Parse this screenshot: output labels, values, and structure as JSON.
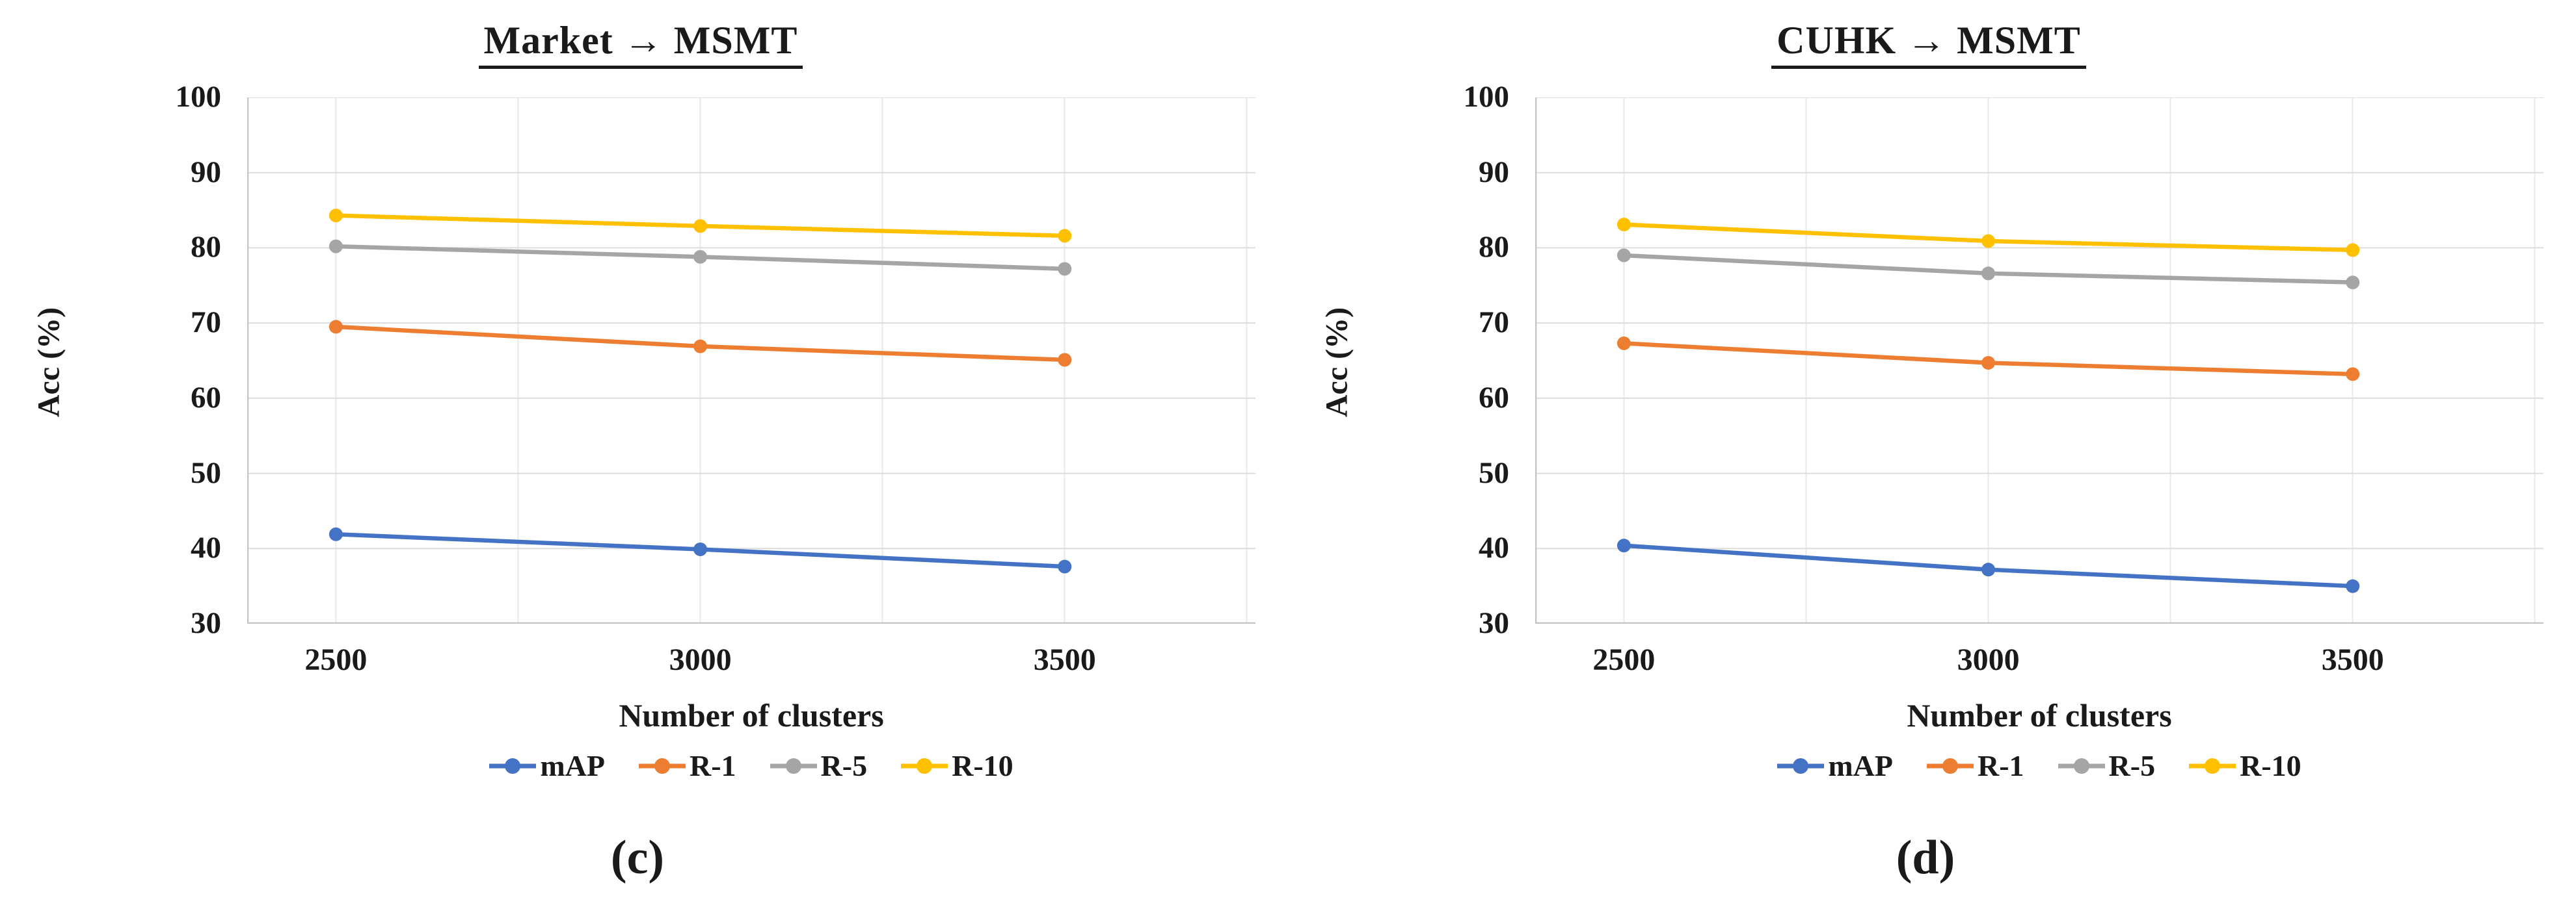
{
  "figure": {
    "background_color": "#ffffff",
    "text_color": "#1a1a1a",
    "gridline_color": "#dcdcdc",
    "vertical_gridline_color": "#e8e8e8",
    "axis_line_color": "#c4c4c4"
  },
  "chart_data": [
    {
      "type": "line",
      "title": "Market → MSMT",
      "caption": "(c)",
      "xlabel": "Number of clusters",
      "ylabel": "Acc (%)",
      "categories": [
        "2500",
        "3000",
        "3500"
      ],
      "yticks": [
        100,
        90,
        80,
        70,
        60,
        50,
        40,
        30
      ],
      "ylim": [
        30,
        100
      ],
      "grid": true,
      "legend_position": "bottom",
      "series": [
        {
          "name": "mAP",
          "color": "#4472C4",
          "values": [
            41.9,
            39.9,
            37.6
          ]
        },
        {
          "name": "R-1",
          "color": "#ED7D31",
          "values": [
            69.5,
            66.9,
            65.1
          ]
        },
        {
          "name": "R-5",
          "color": "#A5A5A5",
          "values": [
            80.2,
            78.8,
            77.2
          ]
        },
        {
          "name": "R-10",
          "color": "#FFC000",
          "values": [
            84.3,
            82.9,
            81.6
          ]
        }
      ]
    },
    {
      "type": "line",
      "title": "CUHK → MSMT",
      "caption": "(d)",
      "xlabel": "Number of clusters",
      "ylabel": "Acc (%)",
      "categories": [
        "2500",
        "3000",
        "3500"
      ],
      "yticks": [
        100,
        90,
        80,
        70,
        60,
        50,
        40,
        30
      ],
      "ylim": [
        30,
        100
      ],
      "grid": true,
      "legend_position": "bottom",
      "series": [
        {
          "name": "mAP",
          "color": "#4472C4",
          "values": [
            40.4,
            37.2,
            35.0
          ]
        },
        {
          "name": "R-1",
          "color": "#ED7D31",
          "values": [
            67.3,
            64.7,
            63.2
          ]
        },
        {
          "name": "R-5",
          "color": "#A5A5A5",
          "values": [
            79.0,
            76.6,
            75.4
          ]
        },
        {
          "name": "R-10",
          "color": "#FFC000",
          "values": [
            83.1,
            80.9,
            79.7
          ]
        }
      ]
    }
  ]
}
